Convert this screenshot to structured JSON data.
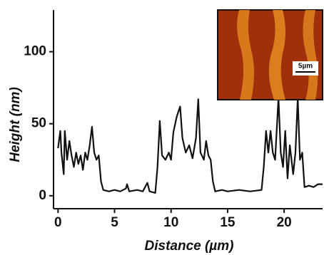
{
  "chart_data": {
    "type": "line",
    "xlabel": "Distance (µm)",
    "ylabel": "Height (nm)",
    "inset_scale_label": "5µm",
    "xlim": [
      -0.4,
      23.4
    ],
    "xticks": [
      0,
      5,
      10,
      15,
      20
    ],
    "ylim": [
      -9,
      129
    ],
    "yticks": [
      0,
      50,
      100
    ],
    "series": [
      {
        "color": "#111111",
        "x": [
          0,
          0.2,
          0.3,
          0.5,
          0.6,
          0.8,
          1.0,
          1.2,
          1.4,
          1.6,
          1.8,
          2.0,
          2.2,
          2.4,
          2.6,
          2.8,
          3.0,
          3.2,
          3.4,
          3.6,
          3.8,
          4.0,
          4.5,
          5,
          5.5,
          6,
          6.1,
          6.3,
          7,
          7.5,
          7.9,
          8.1,
          8.6,
          8.8,
          9.0,
          9.2,
          9.5,
          9.8,
          10.0,
          10.2,
          10.5,
          10.8,
          11.0,
          11.3,
          11.6,
          11.9,
          12.2,
          12.4,
          12.6,
          12.9,
          13.1,
          13.3,
          13.5,
          13.7,
          13.9,
          14.5,
          15,
          16,
          17,
          18,
          18.2,
          18.4,
          18.6,
          18.8,
          19.0,
          19.2,
          19.5,
          19.7,
          19.9,
          20.1,
          20.3,
          20.5,
          20.8,
          21.0,
          21.2,
          21.4,
          21.6,
          21.8,
          22.2,
          22.6,
          23.0,
          23.4
        ],
        "values": [
          33,
          45,
          30,
          15,
          45,
          25,
          38,
          28,
          20,
          30,
          22,
          28,
          18,
          30,
          25,
          35,
          48,
          30,
          25,
          28,
          10,
          4,
          3,
          4,
          3,
          5,
          8,
          3,
          4,
          3,
          9,
          3,
          2,
          20,
          52,
          28,
          25,
          30,
          25,
          44,
          55,
          62,
          40,
          30,
          35,
          26,
          40,
          67,
          30,
          25,
          38,
          28,
          25,
          10,
          3,
          4,
          3,
          4,
          3,
          4,
          20,
          45,
          30,
          45,
          30,
          25,
          68,
          30,
          20,
          45,
          12,
          35,
          15,
          30,
          68,
          25,
          30,
          6,
          7,
          6,
          8,
          8
        ]
      }
    ]
  }
}
